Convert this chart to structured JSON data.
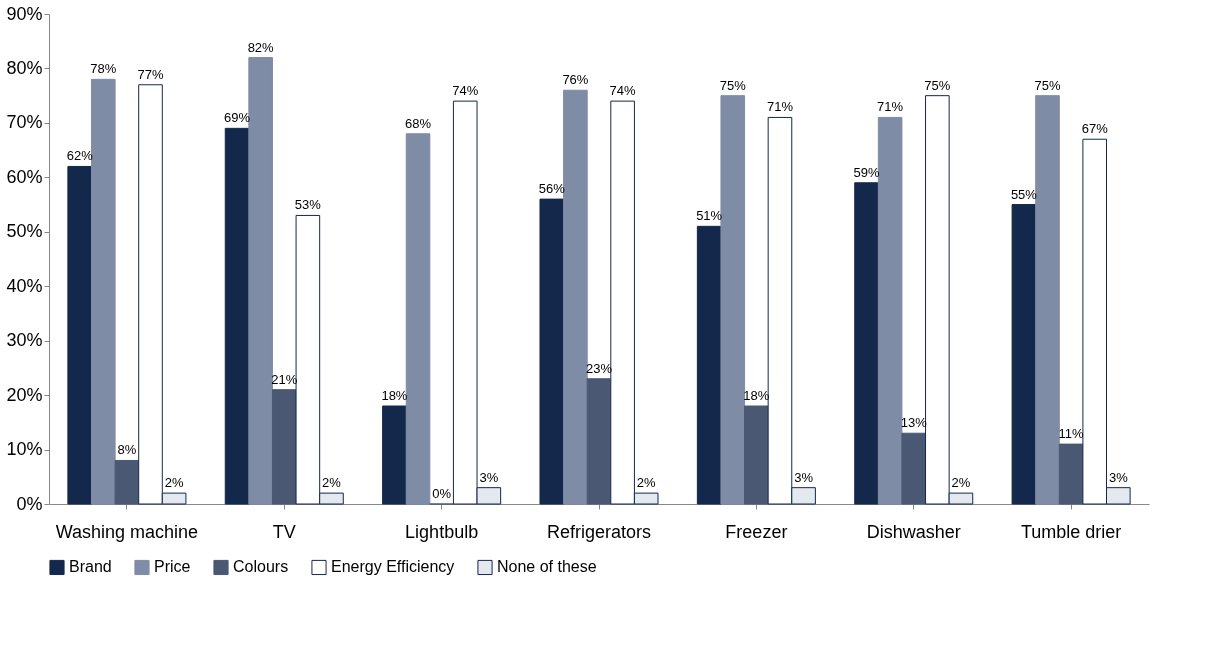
{
  "chart_data": {
    "type": "bar",
    "categories": [
      "Washing machine",
      "TV",
      "Lightbulb",
      "Refrigerators",
      "Freezer",
      "Dishwasher",
      "Tumble drier"
    ],
    "series": [
      {
        "name": "Brand",
        "color": "#14284b",
        "values": [
          62,
          69,
          18,
          56,
          51,
          59,
          55
        ],
        "value_labels": [
          "62%",
          "69%",
          "18%",
          "56%",
          "51%",
          "59%",
          "55%"
        ]
      },
      {
        "name": "Price",
        "color": "#7f8ca6",
        "values": [
          78,
          82,
          68,
          76,
          75,
          71,
          75
        ],
        "value_labels": [
          "78%",
          "82%",
          "68%",
          "76%",
          "75%",
          "71%",
          "75%"
        ]
      },
      {
        "name": "Colours",
        "color": "#4a5874",
        "values": [
          8,
          21,
          0,
          23,
          18,
          13,
          11
        ],
        "value_labels": [
          "8%",
          "21%",
          "0%",
          "23%",
          "18%",
          "13%",
          "11%"
        ]
      },
      {
        "name": "Energy Efficiency",
        "color": "#ffffff",
        "values": [
          77,
          53,
          74,
          74,
          71,
          75,
          67
        ],
        "value_labels": [
          "77%",
          "53%",
          "74%",
          "74%",
          "71%",
          "75%",
          "67%"
        ]
      },
      {
        "name": "None of these",
        "color": "#e4e8ef",
        "values": [
          2,
          2,
          3,
          2,
          3,
          2,
          3
        ],
        "value_labels": [
          "2%",
          "2%",
          "3%",
          "2%",
          "3%",
          "2%",
          "3%"
        ]
      }
    ],
    "ylim": [
      0,
      90
    ],
    "yticks": [
      {
        "value": 0,
        "label": "0%"
      },
      {
        "value": 10,
        "label": "10%"
      },
      {
        "value": 20,
        "label": "20%"
      },
      {
        "value": 30,
        "label": "30%"
      },
      {
        "value": 40,
        "label": "40%"
      },
      {
        "value": 50,
        "label": "50%"
      },
      {
        "value": 60,
        "label": "60%"
      },
      {
        "value": 70,
        "label": "70%"
      },
      {
        "value": 80,
        "label": "80%"
      },
      {
        "value": 90,
        "label": "90%"
      }
    ],
    "grid": false,
    "legend": "bottom"
  }
}
